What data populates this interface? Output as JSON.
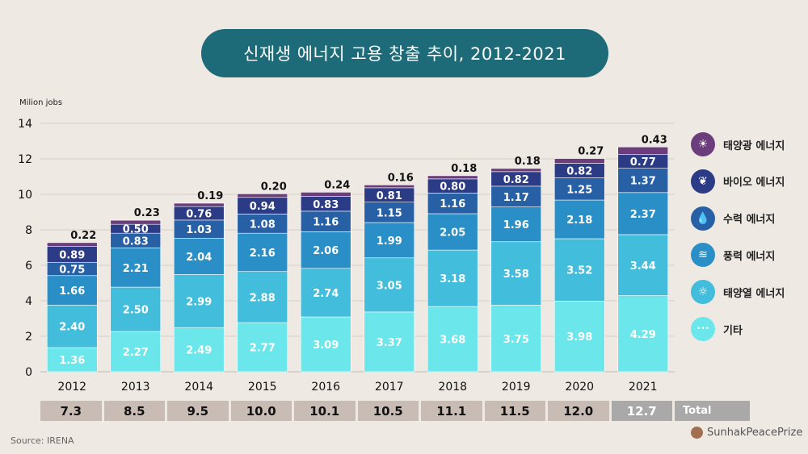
{
  "title": "신재생 에너지 고용 창출 추이, 2012-2021",
  "source": "Source: IRENA",
  "brand": "SunhakPeacePrize",
  "total_label": "Total",
  "chart_data": {
    "type": "bar",
    "stacked": true,
    "ylabel": "Milion jobs",
    "ylim": [
      0,
      14
    ],
    "yticks": [
      0,
      2,
      4,
      6,
      8,
      10,
      12,
      14
    ],
    "categories": [
      "2012",
      "2013",
      "2014",
      "2015",
      "2016",
      "2017",
      "2018",
      "2019",
      "2020",
      "2021"
    ],
    "series": [
      {
        "name": "기타",
        "color": "#6be6ea",
        "icon": "dots-icon",
        "values": [
          1.36,
          2.27,
          2.49,
          2.77,
          3.09,
          3.37,
          3.68,
          3.75,
          3.98,
          4.29
        ]
      },
      {
        "name": "태양열 에너지",
        "color": "#42bddb",
        "icon": "solar-thermal-icon",
        "values": [
          2.4,
          2.5,
          2.99,
          2.88,
          2.74,
          3.05,
          3.18,
          3.58,
          3.52,
          3.44
        ]
      },
      {
        "name": "풍력 에너지",
        "color": "#2a8fc6",
        "icon": "wind-icon",
        "values": [
          1.66,
          2.21,
          2.04,
          2.16,
          2.06,
          1.99,
          2.05,
          1.96,
          2.18,
          2.37
        ]
      },
      {
        "name": "수력 에너지",
        "color": "#2860a5",
        "icon": "water-drop-icon",
        "values": [
          0.75,
          0.83,
          1.03,
          1.08,
          1.16,
          1.15,
          1.16,
          1.17,
          1.25,
          1.37
        ]
      },
      {
        "name": "바이오 에너지",
        "color": "#2b3b85",
        "icon": "leaf-icon",
        "values": [
          0.89,
          0.5,
          0.76,
          0.94,
          0.83,
          0.81,
          0.8,
          0.82,
          0.82,
          0.77
        ]
      },
      {
        "name": "태양광 에너지",
        "color": "#6b3d7a",
        "icon": "solar-pv-icon",
        "values": [
          0.22,
          0.23,
          0.19,
          0.2,
          0.24,
          0.16,
          0.18,
          0.18,
          0.27,
          0.43
        ]
      }
    ],
    "value_labels": [
      [
        "1.36",
        "2.27",
        "2.49",
        "2.77",
        "3.09",
        "3.37",
        "3.68",
        "3.75",
        "3.98",
        "4.29"
      ],
      [
        "2.40",
        "2.50",
        "2.99",
        "2.88",
        "2.74",
        "3.05",
        "3.18",
        "3.58",
        "3.52",
        "3.44"
      ],
      [
        "1.66",
        "2.21",
        "2.04",
        "2.16",
        "2.06",
        "1.99",
        "2.05",
        "1.96",
        "2.18",
        "2.37"
      ],
      [
        "0.75",
        "0.83",
        "1.03",
        "1.08",
        "1.16",
        "1.15",
        "1.16",
        "1.17",
        "1.25",
        "1.37"
      ],
      [
        "0.89",
        "0.50",
        "0.76",
        "0.94",
        "0.83",
        "0.81",
        "0.80",
        "0.82",
        "0.82",
        "0.77"
      ],
      [
        "0.22",
        "0.23",
        "0.19",
        "0.20",
        "0.24",
        "0.16",
        "0.18",
        "0.18",
        "0.27",
        "0.43"
      ]
    ],
    "totals": [
      "7.3",
      "8.5",
      "9.5",
      "10.0",
      "10.1",
      "10.5",
      "11.1",
      "11.5",
      "12.0",
      "12.7"
    ],
    "legend": [
      "태양광 에너지",
      "바이오 에너지",
      "수력 에너지",
      "풍력 에너지",
      "태양열 에너지",
      "기타"
    ],
    "legend_position": "right"
  },
  "colors": {
    "background": "#efe9e4",
    "title_bg": "#1d6b78",
    "total_bg": "#c9bcb5",
    "total_last_bg": "#a9a9a9",
    "axis_text": "#111111"
  }
}
